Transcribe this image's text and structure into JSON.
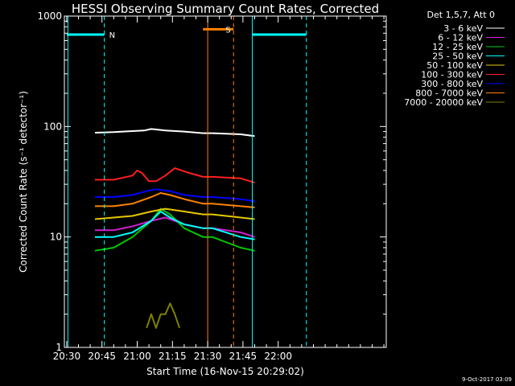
{
  "chart_data": {
    "type": "line",
    "title": "HESSI Observing Summary Count Rates, Corrected",
    "xlabel": "Start Time (16-Nov-15 20:29:02)",
    "ylabel": "Corrected Count Rate (s⁻¹ detector⁻¹)",
    "x_unit": "minutes after 20:30",
    "xlim": [
      -1,
      136
    ],
    "ylim": [
      1,
      1000
    ],
    "y_scale": "log",
    "x_ticks": [
      {
        "v": 0,
        "label": "20:30"
      },
      {
        "v": 15,
        "label": "20:45"
      },
      {
        "v": 30,
        "label": "21:00"
      },
      {
        "v": 45,
        "label": "21:15"
      },
      {
        "v": 60,
        "label": "21:30"
      },
      {
        "v": 75,
        "label": "21:45"
      },
      {
        "v": 90,
        "label": "22:00"
      }
    ],
    "x_minor_step": 5,
    "y_ticks": [
      {
        "v": 1,
        "label": "1"
      },
      {
        "v": 10,
        "label": "10"
      },
      {
        "v": 100,
        "label": "100"
      },
      {
        "v": 1000,
        "label": "1000"
      }
    ],
    "legend_title": "Det 1,5,7, Att 0",
    "legend_position": "right, outside plot",
    "series": [
      {
        "name": "3 - 6 keV",
        "color": "#ffffff",
        "values": [
          [
            12,
            88
          ],
          [
            20,
            89
          ],
          [
            28,
            91
          ],
          [
            33,
            92
          ],
          [
            36,
            95
          ],
          [
            42,
            92
          ],
          [
            50,
            90
          ],
          [
            58,
            87
          ],
          [
            62,
            87
          ],
          [
            74,
            85
          ],
          [
            80,
            82
          ]
        ]
      },
      {
        "name": "6 - 12 keV",
        "color": "#d020d0",
        "values": [
          [
            12,
            11.5
          ],
          [
            20,
            11.5
          ],
          [
            28,
            12.5
          ],
          [
            36,
            14
          ],
          [
            42,
            15
          ],
          [
            50,
            13
          ],
          [
            58,
            12
          ],
          [
            62,
            12
          ],
          [
            74,
            11
          ],
          [
            80,
            10
          ]
        ]
      },
      {
        "name": "12 - 25 keV",
        "color": "#00c800",
        "values": [
          [
            12,
            7.5
          ],
          [
            20,
            8
          ],
          [
            28,
            10
          ],
          [
            36,
            14
          ],
          [
            40,
            18
          ],
          [
            44,
            16
          ],
          [
            50,
            12
          ],
          [
            58,
            10
          ],
          [
            62,
            10
          ],
          [
            74,
            8
          ],
          [
            80,
            7.5
          ]
        ]
      },
      {
        "name": "25 - 50 keV",
        "color": "#00ffff",
        "values": [
          [
            12,
            10
          ],
          [
            20,
            10
          ],
          [
            28,
            11
          ],
          [
            36,
            14
          ],
          [
            40,
            17
          ],
          [
            44,
            15
          ],
          [
            50,
            13
          ],
          [
            58,
            12
          ],
          [
            62,
            12
          ],
          [
            74,
            10
          ],
          [
            80,
            9.5
          ]
        ]
      },
      {
        "name": "50 - 100 keV",
        "color": "#e6c800",
        "values": [
          [
            12,
            14.5
          ],
          [
            20,
            15
          ],
          [
            28,
            15.5
          ],
          [
            36,
            17
          ],
          [
            42,
            18
          ],
          [
            50,
            17
          ],
          [
            58,
            16
          ],
          [
            62,
            16
          ],
          [
            74,
            15
          ],
          [
            80,
            14.5
          ]
        ]
      },
      {
        "name": "100 - 300 keV",
        "color": "#ff1e1e",
        "values": [
          [
            12,
            33
          ],
          [
            20,
            33
          ],
          [
            28,
            36
          ],
          [
            30,
            40
          ],
          [
            32,
            38
          ],
          [
            35,
            32
          ],
          [
            38,
            32
          ],
          [
            42,
            36
          ],
          [
            46,
            42
          ],
          [
            52,
            38
          ],
          [
            58,
            35
          ],
          [
            62,
            35
          ],
          [
            74,
            34
          ],
          [
            80,
            31
          ]
        ]
      },
      {
        "name": "300 - 800 keV",
        "color": "#0000ff",
        "values": [
          [
            12,
            23
          ],
          [
            20,
            23
          ],
          [
            28,
            24
          ],
          [
            34,
            26
          ],
          [
            38,
            27
          ],
          [
            44,
            26
          ],
          [
            50,
            24
          ],
          [
            58,
            23
          ],
          [
            62,
            23
          ],
          [
            74,
            22
          ],
          [
            80,
            21
          ]
        ]
      },
      {
        "name": "800 - 7000 keV",
        "color": "#ff8200",
        "values": [
          [
            12,
            19
          ],
          [
            20,
            19
          ],
          [
            28,
            20
          ],
          [
            36,
            23
          ],
          [
            40,
            25
          ],
          [
            44,
            24
          ],
          [
            50,
            22
          ],
          [
            58,
            20
          ],
          [
            62,
            20
          ],
          [
            74,
            19
          ],
          [
            80,
            18.5
          ]
        ]
      },
      {
        "name": "7000 - 20000 keV",
        "color": "#808000",
        "values": [
          [
            34,
            1.5
          ],
          [
            36,
            2
          ],
          [
            38,
            1.5
          ],
          [
            40,
            2
          ],
          [
            42,
            2
          ],
          [
            44,
            2.5
          ],
          [
            46,
            2
          ],
          [
            48,
            1.5
          ]
        ]
      }
    ],
    "state_bars": [
      {
        "flag": "N",
        "color": "#00ffff",
        "line_style": "solid",
        "level": 680,
        "segments": [
          [
            0,
            16
          ],
          [
            79,
            102
          ]
        ]
      },
      {
        "flag": "S",
        "color": "#ff8200",
        "line_style": "solid",
        "level": 760,
        "segments": [
          [
            58,
            71
          ]
        ]
      }
    ],
    "markers": [
      {
        "x": 0.5,
        "color": "#00ffff",
        "style": "solid"
      },
      {
        "x": 16,
        "color": "#00ffff",
        "style": "dashed"
      },
      {
        "x": 60,
        "color": "#ff8200",
        "style": "solid"
      },
      {
        "x": 71,
        "color": "#ff8200",
        "style": "dashed"
      },
      {
        "x": 79,
        "color": "#00ffff",
        "style": "solid"
      },
      {
        "x": 102,
        "color": "#00ffff",
        "style": "dashed"
      }
    ]
  },
  "footer": {
    "timestamp": "9-Oct-2017 03:09"
  }
}
